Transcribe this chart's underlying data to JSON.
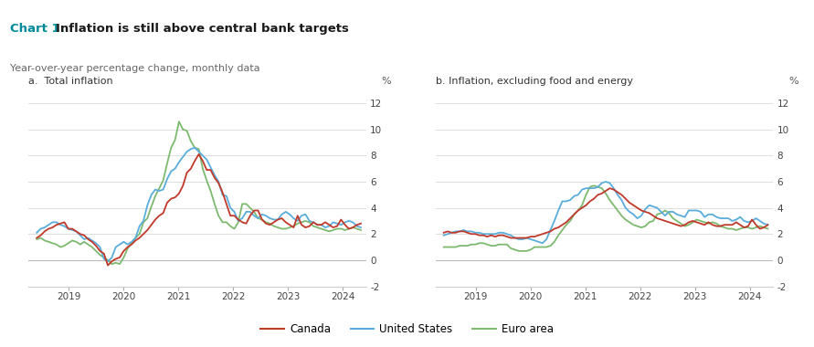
{
  "title_prefix": "Chart 1: ",
  "title_main": "Inflation is still above central bank targets",
  "subtitle": "Year-over-year percentage change, monthly data",
  "panel_a_label": "a.  Total inflation",
  "panel_b_label": "b. Inflation, excluding food and energy",
  "ylim": [
    -2,
    13
  ],
  "yticks": [
    -2,
    0,
    2,
    4,
    6,
    8,
    10,
    12
  ],
  "title_color": "#1a1a1a",
  "title_prefix_color": "#008B9B",
  "subtitle_color": "#666666",
  "top_border_color": "#008B9B",
  "canada_color": "#c0392b",
  "us_color": "#5aaddb",
  "euro_color": "#7db96e",
  "legend_labels": [
    "Canada",
    "United States",
    "Euro area"
  ],
  "background_color": "#ffffff",
  "start_year": 2018.42,
  "end_year": 2024.33,
  "canada_total": [
    1.7,
    1.9,
    2.2,
    2.4,
    2.5,
    2.7,
    2.8,
    2.9,
    2.4,
    2.4,
    2.2,
    2.0,
    1.9,
    1.6,
    1.4,
    1.1,
    0.7,
    0.5,
    -0.4,
    -0.1,
    0.1,
    0.2,
    0.7,
    1.0,
    1.2,
    1.5,
    1.7,
    2.0,
    2.3,
    2.7,
    3.1,
    3.4,
    3.6,
    4.4,
    4.7,
    4.8,
    5.1,
    5.7,
    6.7,
    7.0,
    7.6,
    8.1,
    7.6,
    6.9,
    6.9,
    6.3,
    5.9,
    5.2,
    4.3,
    3.4,
    3.4,
    3.1,
    2.9,
    2.8,
    3.4,
    3.8,
    3.8,
    3.1,
    2.8,
    2.7,
    2.9,
    3.1,
    3.2,
    2.9,
    2.7,
    2.5,
    3.4,
    2.7,
    2.5,
    2.6,
    2.9,
    2.7,
    2.7,
    2.9,
    2.7,
    2.5,
    2.6,
    3.1,
    2.7,
    2.4,
    2.5,
    2.7,
    2.8
  ],
  "us_total": [
    2.1,
    2.4,
    2.5,
    2.7,
    2.9,
    2.9,
    2.7,
    2.6,
    2.4,
    2.3,
    2.2,
    1.9,
    1.6,
    1.7,
    1.5,
    1.3,
    1.0,
    0.1,
    -0.1,
    0.2,
    1.0,
    1.2,
    1.4,
    1.2,
    1.4,
    1.7,
    2.6,
    3.0,
    4.2,
    5.0,
    5.4,
    5.3,
    5.4,
    6.2,
    6.8,
    7.0,
    7.5,
    7.9,
    8.3,
    8.5,
    8.6,
    8.3,
    8.0,
    7.7,
    7.1,
    6.5,
    6.0,
    5.0,
    4.9,
    4.0,
    3.7,
    3.0,
    3.2,
    3.7,
    3.7,
    3.4,
    3.2,
    3.5,
    3.4,
    3.2,
    3.1,
    3.1,
    3.5,
    3.7,
    3.5,
    3.2,
    3.0,
    3.4,
    3.5,
    3.0,
    2.9,
    2.7,
    2.7,
    2.5,
    2.6,
    2.9,
    2.8,
    2.7,
    2.9,
    3.0,
    2.9,
    2.6,
    2.5
  ],
  "euro_total": [
    1.6,
    1.7,
    1.5,
    1.4,
    1.3,
    1.2,
    1.0,
    1.1,
    1.3,
    1.5,
    1.4,
    1.2,
    1.4,
    1.2,
    1.0,
    0.7,
    0.4,
    0.2,
    0.0,
    -0.3,
    -0.2,
    -0.3,
    0.2,
    0.9,
    1.3,
    1.7,
    2.0,
    2.9,
    3.2,
    4.1,
    4.9,
    5.5,
    6.1,
    7.4,
    8.6,
    9.2,
    10.6,
    10.0,
    9.9,
    9.1,
    8.6,
    8.5,
    7.0,
    6.1,
    5.3,
    4.3,
    3.4,
    2.9,
    2.9,
    2.6,
    2.4,
    2.9,
    4.3,
    4.3,
    4.0,
    3.7,
    3.2,
    3.1,
    2.9,
    2.8,
    2.6,
    2.5,
    2.4,
    2.4,
    2.5,
    2.6,
    2.8,
    2.9,
    3.0,
    2.9,
    2.6,
    2.5,
    2.4,
    2.3,
    2.2,
    2.3,
    2.4,
    2.4,
    2.3,
    2.4,
    2.5,
    2.4,
    2.3
  ],
  "canada_core": [
    2.1,
    2.2,
    2.1,
    2.1,
    2.2,
    2.2,
    2.1,
    2.0,
    2.0,
    1.9,
    1.9,
    1.8,
    1.9,
    1.8,
    1.9,
    1.9,
    1.8,
    1.7,
    1.7,
    1.7,
    1.7,
    1.7,
    1.8,
    1.8,
    1.9,
    2.0,
    2.1,
    2.2,
    2.4,
    2.5,
    2.7,
    2.9,
    3.2,
    3.5,
    3.8,
    4.0,
    4.2,
    4.5,
    4.7,
    5.0,
    5.1,
    5.3,
    5.5,
    5.4,
    5.2,
    5.0,
    4.7,
    4.4,
    4.2,
    4.0,
    3.8,
    3.7,
    3.6,
    3.4,
    3.2,
    3.1,
    3.0,
    2.9,
    2.8,
    2.7,
    2.6,
    2.7,
    2.9,
    3.0,
    2.9,
    2.8,
    2.7,
    2.9,
    2.7,
    2.6,
    2.6,
    2.7,
    2.7,
    2.7,
    2.9,
    2.7,
    2.5,
    2.6,
    3.1,
    2.7,
    2.4,
    2.5,
    2.7
  ],
  "us_core": [
    1.9,
    2.0,
    2.1,
    2.2,
    2.2,
    2.3,
    2.2,
    2.2,
    2.1,
    2.1,
    2.0,
    2.0,
    2.0,
    2.0,
    2.1,
    2.1,
    2.0,
    1.9,
    1.7,
    1.6,
    1.6,
    1.7,
    1.6,
    1.5,
    1.4,
    1.3,
    1.6,
    2.3,
    3.0,
    3.8,
    4.5,
    4.5,
    4.6,
    4.9,
    5.0,
    5.4,
    5.5,
    5.5,
    5.5,
    5.6,
    5.9,
    6.0,
    5.9,
    5.5,
    5.0,
    4.6,
    4.0,
    3.7,
    3.5,
    3.2,
    3.4,
    3.9,
    4.2,
    4.1,
    4.0,
    3.7,
    3.4,
    3.7,
    3.7,
    3.5,
    3.4,
    3.3,
    3.8,
    3.8,
    3.8,
    3.7,
    3.3,
    3.5,
    3.5,
    3.3,
    3.2,
    3.2,
    3.2,
    3.0,
    3.1,
    3.3,
    3.0,
    2.9,
    3.0,
    3.2,
    3.0,
    2.8,
    2.7
  ],
  "euro_core": [
    1.0,
    1.0,
    1.0,
    1.0,
    1.1,
    1.1,
    1.1,
    1.2,
    1.2,
    1.3,
    1.3,
    1.2,
    1.1,
    1.1,
    1.2,
    1.2,
    1.2,
    0.9,
    0.8,
    0.7,
    0.7,
    0.7,
    0.8,
    1.0,
    1.0,
    1.0,
    1.0,
    1.1,
    1.4,
    1.9,
    2.3,
    2.7,
    3.0,
    3.5,
    3.8,
    4.2,
    5.0,
    5.6,
    5.7,
    5.6,
    5.5,
    5.1,
    4.6,
    4.2,
    3.8,
    3.4,
    3.1,
    2.9,
    2.7,
    2.6,
    2.5,
    2.6,
    2.9,
    3.0,
    3.5,
    3.6,
    3.8,
    3.6,
    3.2,
    3.0,
    2.8,
    2.6,
    2.7,
    2.9,
    3.1,
    3.0,
    2.9,
    2.8,
    2.9,
    2.8,
    2.6,
    2.5,
    2.4,
    2.4,
    2.3,
    2.4,
    2.5,
    2.5,
    2.4,
    2.5,
    2.6,
    2.5,
    2.4
  ]
}
